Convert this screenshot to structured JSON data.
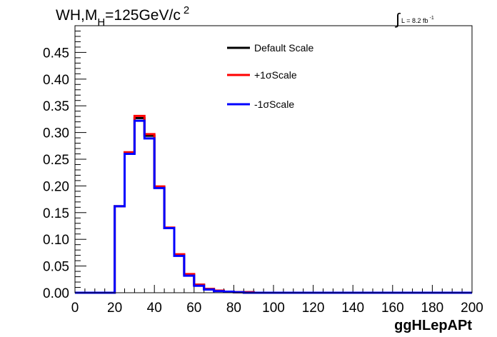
{
  "title": {
    "main": "WH,M",
    "sub": "H",
    "rest": "=125GeV/c",
    "sup": "2"
  },
  "lumi": {
    "integral": "∫",
    "text": "L = 8.2 fb",
    "sup": "-1"
  },
  "chart_data": {
    "type": "line",
    "step": true,
    "xlabel": "ggHLepAPt",
    "ylabel": "",
    "xlim": [
      0,
      200
    ],
    "ylim": [
      0,
      0.5
    ],
    "x_ticks": [
      "0",
      "20",
      "40",
      "60",
      "80",
      "100",
      "120",
      "140",
      "160",
      "180",
      "200"
    ],
    "y_ticks": [
      "0.00",
      "0.05",
      "0.10",
      "0.15",
      "0.20",
      "0.25",
      "0.30",
      "0.35",
      "0.40",
      "0.45"
    ],
    "bin_width": 5,
    "bin_edges": [
      0,
      5,
      10,
      15,
      20,
      25,
      30,
      35,
      40,
      45,
      50,
      55,
      60,
      65,
      70,
      75,
      80,
      85,
      90,
      95,
      100,
      105,
      110,
      115,
      120,
      125,
      130,
      135,
      140,
      145,
      150,
      155,
      160,
      165,
      170,
      175,
      180,
      185,
      190,
      195,
      200
    ],
    "legend_position": "top-center",
    "series": [
      {
        "name": "Default Scale",
        "color": "#000000",
        "values": [
          0,
          0,
          0,
          0,
          0.162,
          0.262,
          0.327,
          0.294,
          0.197,
          0.121,
          0.071,
          0.034,
          0.015,
          0.007,
          0.004,
          0.002,
          0.001,
          0.001,
          0,
          0,
          0,
          0,
          0,
          0,
          0,
          0,
          0,
          0,
          0,
          0,
          0,
          0,
          0,
          0,
          0,
          0,
          0,
          0,
          0,
          0
        ]
      },
      {
        "name": "+1σScale",
        "color": "#ff0000",
        "values": [
          0,
          0,
          0,
          0,
          0.162,
          0.263,
          0.331,
          0.297,
          0.199,
          0.122,
          0.072,
          0.035,
          0.015,
          0.007,
          0.004,
          0.002,
          0.001,
          0.001,
          0,
          0,
          0,
          0,
          0,
          0,
          0,
          0,
          0,
          0,
          0,
          0,
          0,
          0,
          0,
          0,
          0,
          0,
          0,
          0,
          0,
          0
        ]
      },
      {
        "name": "-1σScale",
        "color": "#0000ff",
        "values": [
          0,
          0,
          0,
          0,
          0.162,
          0.26,
          0.322,
          0.289,
          0.196,
          0.121,
          0.069,
          0.032,
          0.013,
          0.006,
          0.003,
          0.002,
          0.001,
          0,
          0,
          0,
          0,
          0,
          0,
          0,
          0,
          0,
          0,
          0,
          0,
          0,
          0,
          0,
          0,
          0,
          0,
          0,
          0,
          0,
          0,
          0
        ]
      }
    ]
  }
}
